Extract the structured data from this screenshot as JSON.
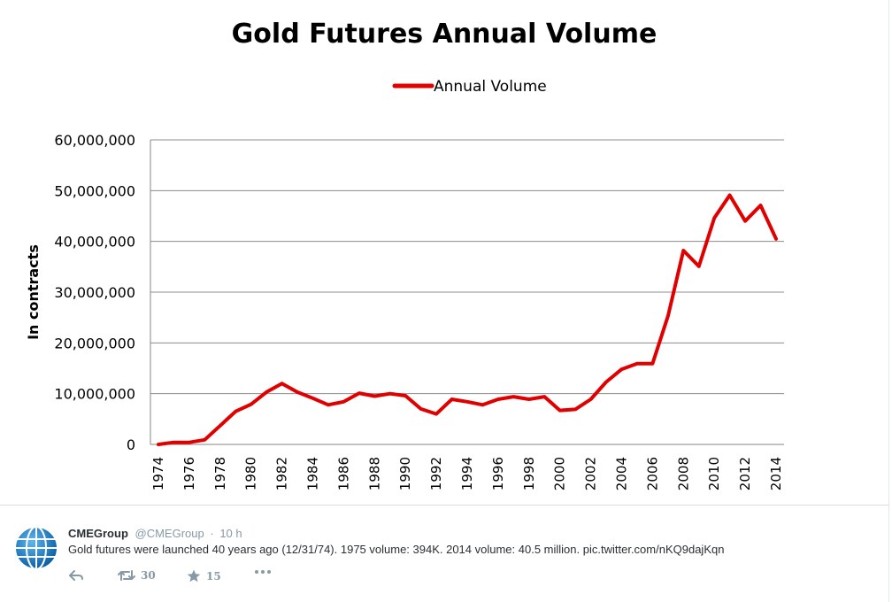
{
  "chart_data": {
    "type": "line",
    "title": "Gold Futures Annual Volume",
    "ylabel": "In contracts",
    "xlabel": "",
    "ylim": [
      0,
      60000000
    ],
    "y_ticks": [
      "0",
      "10,000,000",
      "20,000,000",
      "30,000,000",
      "40,000,000",
      "50,000,000",
      "60,000,000"
    ],
    "y_tick_values": [
      0,
      10000000,
      20000000,
      30000000,
      40000000,
      50000000,
      60000000
    ],
    "x_tick_labels": [
      "1974",
      "1976",
      "1978",
      "1980",
      "1982",
      "1984",
      "1986",
      "1988",
      "1990",
      "1992",
      "1994",
      "1996",
      "1998",
      "2000",
      "2002",
      "2004",
      "2006",
      "2008",
      "2010",
      "2012",
      "2014"
    ],
    "legend": "top",
    "grid": true,
    "series": [
      {
        "name": "Annual Volume",
        "color": "#e00000",
        "x": [
          1974,
          1975,
          1976,
          1977,
          1978,
          1979,
          1980,
          1981,
          1982,
          1983,
          1984,
          1985,
          1986,
          1987,
          1988,
          1989,
          1990,
          1991,
          1992,
          1993,
          1994,
          1995,
          1996,
          1997,
          1998,
          1999,
          2000,
          2001,
          2002,
          2003,
          2004,
          2005,
          2006,
          2007,
          2008,
          2009,
          2010,
          2011,
          2012,
          2013,
          2014
        ],
        "values": [
          0,
          394000,
          400000,
          900000,
          3700000,
          6500000,
          7900000,
          10300000,
          12000000,
          10300000,
          9100000,
          7800000,
          8400000,
          10100000,
          9500000,
          10000000,
          9600000,
          7000000,
          6000000,
          8900000,
          8400000,
          7800000,
          8900000,
          9400000,
          8900000,
          9400000,
          6700000,
          6900000,
          8900000,
          12300000,
          14800000,
          15900000,
          15900000,
          25300000,
          38200000,
          35100000,
          44600000,
          49100000,
          44000000,
          47100000,
          40500000
        ]
      }
    ]
  },
  "tweet": {
    "avatar": "globe-icon",
    "name": "CMEGroup",
    "handle": "@CMEGroup",
    "dot": "·",
    "time": "10 h",
    "text": "Gold futures were launched 40 years ago (12/31/74). 1975 volume: 394K. 2014 volume: 40.5 million.",
    "link": "pic.twitter.com/nKQ9dajKqn",
    "retweet_count": "30",
    "favorite_count": "15",
    "accent_color": "#1d7fc4"
  }
}
